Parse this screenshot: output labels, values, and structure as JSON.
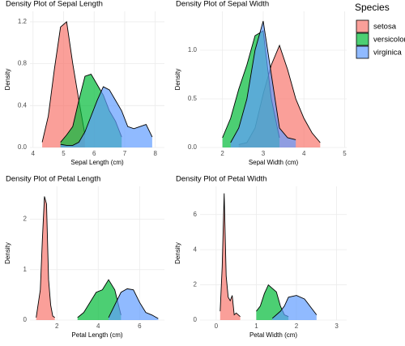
{
  "chart_data": [
    {
      "type": "density",
      "title": "Density Plot of Sepal Length",
      "x_label": "Sepal Length (cm)",
      "y_label": "Density",
      "legend_title": "Species",
      "legend_position": "right",
      "xlim": [
        3.9,
        8.3
      ],
      "xticks": [
        4,
        5,
        6,
        7,
        8
      ],
      "ylim": [
        0,
        1.3
      ],
      "yticks": [
        {
          "value": 0,
          "label": "0.0"
        },
        0.4,
        0.8,
        1.2
      ],
      "grid": true,
      "x": [
        4.3,
        4.5,
        4.7,
        4.9,
        5.1,
        5.3,
        5.5,
        5.7,
        5.9,
        6.1,
        6.3,
        6.5,
        6.7,
        6.9,
        7.1,
        7.3,
        7.5,
        7.7,
        7.9
      ],
      "series": [
        {
          "name": "setosa",
          "color": "#f8766d",
          "values": [
            0.05,
            0.3,
            0.75,
            1.15,
            1.2,
            0.8,
            0.45,
            0.12,
            null,
            null,
            null,
            null,
            null,
            null,
            null,
            null,
            null,
            null,
            null
          ]
        },
        {
          "name": "versicolor",
          "color": "#00ba38",
          "values": [
            null,
            null,
            null,
            0.05,
            0.12,
            0.2,
            0.45,
            0.68,
            0.7,
            0.6,
            0.5,
            0.35,
            0.25,
            0.1,
            null,
            null,
            null,
            null,
            null
          ]
        },
        {
          "name": "virginica",
          "color": "#619cff",
          "values": [
            null,
            null,
            null,
            0.03,
            0.02,
            0.02,
            0.05,
            0.15,
            0.3,
            0.45,
            0.58,
            0.55,
            0.45,
            0.35,
            0.2,
            0.18,
            0.2,
            0.22,
            0.1
          ]
        }
      ]
    },
    {
      "type": "density",
      "title": "Density Plot of Sepal Width",
      "x_label": "Sepal Width (cm)",
      "y_label": "Density",
      "xlim": [
        1.45,
        5.05
      ],
      "xticks": [
        2,
        3,
        4,
        5
      ],
      "ylim": [
        0,
        1.4
      ],
      "yticks": [
        {
          "value": 0,
          "label": "0.0"
        },
        0.5,
        {
          "value": 1,
          "label": "1.0"
        }
      ],
      "grid": true,
      "x": [
        2.0,
        2.2,
        2.4,
        2.6,
        2.8,
        3.0,
        3.2,
        3.4,
        3.6,
        3.8,
        4.0,
        4.2,
        4.4
      ],
      "series": [
        {
          "name": "setosa",
          "color": "#f8766d",
          "values": [
            null,
            null,
            0.03,
            0.05,
            0.2,
            0.55,
            0.85,
            1.05,
            0.8,
            0.5,
            0.3,
            0.15,
            0.05
          ]
        },
        {
          "name": "versicolor",
          "color": "#00ba38",
          "values": [
            0.1,
            0.3,
            0.6,
            0.85,
            1.15,
            1.2,
            0.5,
            0.1,
            null,
            null,
            null,
            null,
            null
          ]
        },
        {
          "name": "virginica",
          "color": "#619cff",
          "values": [
            null,
            0.05,
            0.2,
            0.5,
            1.0,
            1.3,
            0.75,
            0.2,
            0.1,
            0.08,
            null,
            null,
            null
          ]
        }
      ]
    },
    {
      "type": "density",
      "title": "Density Plot of Petal Length",
      "x_label": "Petal Length (cm)",
      "y_label": "Density",
      "xlim": [
        0.7,
        7.2
      ],
      "xticks": [
        2,
        4,
        6
      ],
      "ylim": [
        0,
        2.65
      ],
      "yticks": [
        0,
        1,
        2
      ],
      "grid": true,
      "x": [
        1.0,
        1.2,
        1.3,
        1.4,
        1.5,
        1.6,
        1.7,
        1.8,
        1.9,
        3.0,
        3.3,
        3.6,
        3.9,
        4.2,
        4.5,
        4.8,
        5.1,
        5.4,
        5.7,
        6.0,
        6.3,
        6.6,
        6.9
      ],
      "series": [
        {
          "name": "setosa",
          "color": "#f8766d",
          "values": [
            0.05,
            0.6,
            1.6,
            2.45,
            2.3,
            0.8,
            0.3,
            0.08,
            0.05,
            null,
            null,
            null,
            null,
            null,
            null,
            null,
            null,
            null,
            null,
            null,
            null,
            null,
            null
          ]
        },
        {
          "name": "versicolor",
          "color": "#00ba38",
          "values": [
            null,
            null,
            null,
            null,
            null,
            null,
            null,
            null,
            null,
            0.05,
            0.15,
            0.35,
            0.55,
            0.6,
            0.8,
            0.6,
            0.1,
            null,
            null,
            null,
            null,
            null,
            null
          ]
        },
        {
          "name": "virginica",
          "color": "#619cff",
          "values": [
            null,
            null,
            null,
            null,
            null,
            null,
            null,
            null,
            null,
            null,
            null,
            null,
            null,
            null,
            0.05,
            0.3,
            0.55,
            0.62,
            0.6,
            0.35,
            0.15,
            0.1,
            0.03
          ]
        }
      ]
    },
    {
      "type": "density",
      "title": "Density Plot of Petal Width",
      "x_label": "Petal Width (cm)",
      "y_label": "Density",
      "xlim": [
        -0.4,
        3.25
      ],
      "xticks": [
        0,
        1,
        2,
        3
      ],
      "ylim": [
        0,
        7.6
      ],
      "yticks": [
        0,
        2,
        4,
        6
      ],
      "grid": true,
      "x": [
        0.1,
        0.15,
        0.2,
        0.25,
        0.3,
        0.35,
        0.4,
        0.45,
        0.5,
        0.6,
        1.0,
        1.1,
        1.2,
        1.3,
        1.4,
        1.5,
        1.6,
        1.7,
        1.8,
        2.0,
        2.2,
        2.4,
        2.5
      ],
      "series": [
        {
          "name": "setosa",
          "color": "#f8766d",
          "values": [
            0.5,
            3,
            7.2,
            2.5,
            1.3,
            1.1,
            1.4,
            0.3,
            0.4,
            0.2,
            null,
            null,
            null,
            null,
            null,
            null,
            null,
            null,
            null,
            null,
            null,
            null,
            null
          ]
        },
        {
          "name": "versicolor",
          "color": "#00ba38",
          "values": [
            null,
            null,
            null,
            null,
            null,
            null,
            null,
            null,
            null,
            null,
            0.5,
            0.8,
            1.5,
            2.0,
            1.8,
            1.6,
            0.8,
            0.3,
            0.2,
            null,
            null,
            null,
            null
          ]
        },
        {
          "name": "virginica",
          "color": "#619cff",
          "values": [
            null,
            null,
            null,
            null,
            null,
            null,
            null,
            null,
            null,
            null,
            null,
            null,
            null,
            null,
            0.1,
            0.3,
            0.5,
            0.8,
            1.3,
            1.4,
            1.2,
            0.6,
            0.3
          ]
        }
      ]
    }
  ]
}
